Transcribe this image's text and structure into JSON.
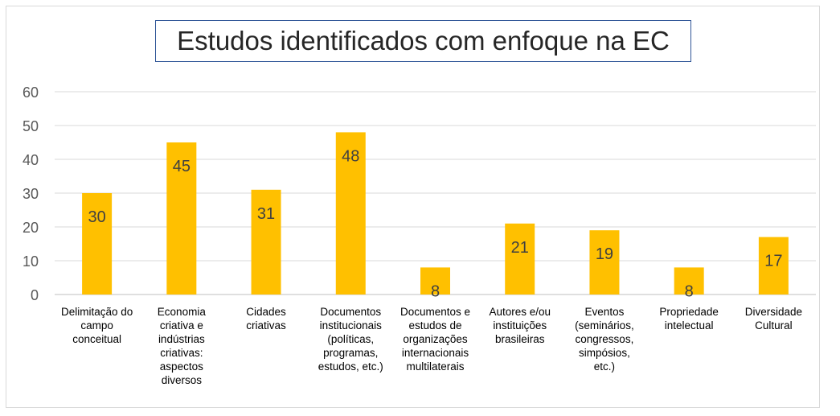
{
  "chart_data": {
    "type": "bar",
    "title": "Estudos identificados com enfoque na EC",
    "xlabel": "",
    "ylabel": "",
    "ylim": [
      0,
      60
    ],
    "yticks": [
      0,
      10,
      20,
      30,
      40,
      50,
      60
    ],
    "grid": true,
    "legend": "none",
    "bar_color": "#ffc000",
    "categories": [
      [
        "Delimitação do",
        "campo",
        "conceitual"
      ],
      [
        "Economia",
        "criativa e",
        "indústrias",
        "criativas:",
        "aspectos",
        "diversos"
      ],
      [
        "Cidades",
        "criativas"
      ],
      [
        "Documentos",
        "institucionais",
        "(políticas,",
        "programas,",
        "estudos, etc.)"
      ],
      [
        "Documentos e",
        "estudos de",
        "organizações",
        "internacionais",
        "multilaterais"
      ],
      [
        "Autores e/ou",
        "instituições",
        "brasileiras"
      ],
      [
        "Eventos",
        "(seminários,",
        "congressos,",
        "simpósios,",
        "etc.)"
      ],
      [
        "Propriedade",
        "intelectual"
      ],
      [
        "Diversidade",
        "Cultural"
      ]
    ],
    "values": [
      30,
      45,
      31,
      48,
      8,
      21,
      19,
      8,
      17
    ]
  }
}
